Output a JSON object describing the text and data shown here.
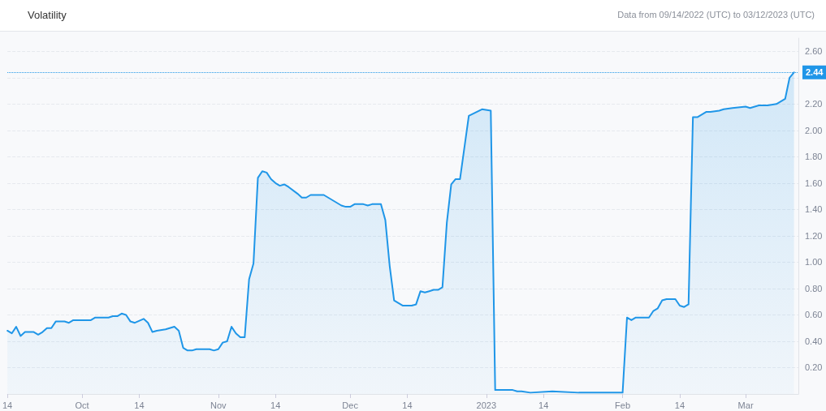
{
  "chart_data": {
    "type": "area",
    "title": "Volatility",
    "annotations": [
      "Data from 09/14/2022 (UTC) to 03/12/2023 (UTC)"
    ],
    "x": [
      "2022-09-14",
      "2022-09-15",
      "2022-09-16",
      "2022-09-17",
      "2022-09-18",
      "2022-09-20",
      "2022-09-21",
      "2022-09-22",
      "2022-09-23",
      "2022-09-24",
      "2022-09-25",
      "2022-09-27",
      "2022-09-28",
      "2022-09-29",
      "2022-09-30",
      "2022-10-03",
      "2022-10-04",
      "2022-10-07",
      "2022-10-08",
      "2022-10-09",
      "2022-10-10",
      "2022-10-11",
      "2022-10-12",
      "2022-10-13",
      "2022-10-15",
      "2022-10-16",
      "2022-10-17",
      "2022-10-18",
      "2022-10-20",
      "2022-10-22",
      "2022-10-23",
      "2022-10-24",
      "2022-10-25",
      "2022-10-26",
      "2022-10-27",
      "2022-10-30",
      "2022-10-31",
      "2022-11-01",
      "2022-11-02",
      "2022-11-03",
      "2022-11-04",
      "2022-11-05",
      "2022-11-06",
      "2022-11-07",
      "2022-11-08",
      "2022-11-09",
      "2022-11-10",
      "2022-11-11",
      "2022-11-12",
      "2022-11-13",
      "2022-11-14",
      "2022-11-15",
      "2022-11-16",
      "2022-11-17",
      "2022-11-19",
      "2022-11-20",
      "2022-11-21",
      "2022-11-22",
      "2022-11-25",
      "2022-11-26",
      "2022-11-27",
      "2022-11-29",
      "2022-11-30",
      "2022-12-01",
      "2022-12-02",
      "2022-12-04",
      "2022-12-05",
      "2022-12-06",
      "2022-12-08",
      "2022-12-09",
      "2022-12-10",
      "2022-12-11",
      "2022-12-13",
      "2022-12-15",
      "2022-12-16",
      "2022-12-17",
      "2022-12-18",
      "2022-12-19",
      "2022-12-20",
      "2022-12-21",
      "2022-12-22",
      "2022-12-23",
      "2022-12-24",
      "2022-12-25",
      "2022-12-26",
      "2022-12-28",
      "2022-12-31",
      "2023-01-02",
      "2023-01-03",
      "2023-01-07",
      "2023-01-08",
      "2023-01-09",
      "2023-01-11",
      "2023-01-16",
      "2023-01-22",
      "2023-02-01",
      "2023-02-02",
      "2023-02-03",
      "2023-02-04",
      "2023-02-07",
      "2023-02-08",
      "2023-02-09",
      "2023-02-10",
      "2023-02-11",
      "2023-02-13",
      "2023-02-14",
      "2023-02-15",
      "2023-02-16",
      "2023-02-17",
      "2023-02-18",
      "2023-02-20",
      "2023-02-21",
      "2023-02-23",
      "2023-02-24",
      "2023-02-26",
      "2023-03-01",
      "2023-03-02",
      "2023-03-04",
      "2023-03-06",
      "2023-03-08",
      "2023-03-09",
      "2023-03-10",
      "2023-03-11",
      "2023-03-12"
    ],
    "series": [
      {
        "color": "#1f96e8",
        "values": [
          0.48,
          0.46,
          0.51,
          0.44,
          0.47,
          0.47,
          0.45,
          0.47,
          0.5,
          0.5,
          0.55,
          0.55,
          0.54,
          0.56,
          0.56,
          0.56,
          0.58,
          0.58,
          0.59,
          0.59,
          0.61,
          0.6,
          0.55,
          0.54,
          0.57,
          0.54,
          0.47,
          0.48,
          0.49,
          0.51,
          0.48,
          0.35,
          0.33,
          0.33,
          0.34,
          0.34,
          0.33,
          0.34,
          0.39,
          0.4,
          0.51,
          0.46,
          0.43,
          0.43,
          0.87,
          0.99,
          1.64,
          1.69,
          1.68,
          1.63,
          1.6,
          1.58,
          1.59,
          1.57,
          1.52,
          1.49,
          1.49,
          1.51,
          1.51,
          1.49,
          1.47,
          1.43,
          1.42,
          1.42,
          1.44,
          1.44,
          1.43,
          1.44,
          1.44,
          1.32,
          0.97,
          0.71,
          0.67,
          0.67,
          0.68,
          0.78,
          0.77,
          0.78,
          0.79,
          0.79,
          0.81,
          1.3,
          1.59,
          1.63,
          1.63,
          2.11,
          2.16,
          2.15,
          0.03,
          0.03,
          0.02,
          0.02,
          0.01,
          0.02,
          0.01,
          0.01,
          0.58,
          0.56,
          0.58,
          0.58,
          0.63,
          0.65,
          0.71,
          0.72,
          0.72,
          0.67,
          0.66,
          0.68,
          2.1,
          2.1,
          2.14,
          2.14,
          2.15,
          2.16,
          2.17,
          2.18,
          2.17,
          2.19,
          2.19,
          2.2,
          2.22,
          2.24,
          2.4,
          2.44
        ]
      }
    ],
    "xlim": [
      "2022-09-14",
      "2023-03-13"
    ],
    "xticks": [
      {
        "value": "2022-09-14",
        "label": "14"
      },
      {
        "value": "2022-10-01",
        "label": "Oct"
      },
      {
        "value": "2022-10-14",
        "label": "14"
      },
      {
        "value": "2022-11-01",
        "label": "Nov"
      },
      {
        "value": "2022-11-14",
        "label": "14"
      },
      {
        "value": "2022-12-01",
        "label": "Dec"
      },
      {
        "value": "2022-12-14",
        "label": "14"
      },
      {
        "value": "2023-01-01",
        "label": "2023"
      },
      {
        "value": "2023-01-14",
        "label": "14"
      },
      {
        "value": "2023-02-01",
        "label": "Feb"
      },
      {
        "value": "2023-02-14",
        "label": "14"
      },
      {
        "value": "2023-03-01",
        "label": "Mar"
      }
    ],
    "ylim": [
      0,
      2.7
    ],
    "yticks": [
      {
        "value": 0.2,
        "label": "0.20"
      },
      {
        "value": 0.4,
        "label": "0.40"
      },
      {
        "value": 0.6,
        "label": "0.60"
      },
      {
        "value": 0.8,
        "label": "0.80"
      },
      {
        "value": 1.0,
        "label": "1.00"
      },
      {
        "value": 1.2,
        "label": "1.20"
      },
      {
        "value": 1.4,
        "label": "1.40"
      },
      {
        "value": 1.6,
        "label": "1.60"
      },
      {
        "value": 1.8,
        "label": "1.80"
      },
      {
        "value": 2.0,
        "label": "2.00"
      },
      {
        "value": 2.2,
        "label": "2.20"
      },
      {
        "value": 2.4,
        "label": null
      },
      {
        "value": 2.6,
        "label": "2.60"
      }
    ],
    "ref_lines": [
      {
        "axis": "y",
        "value": 2.44,
        "label": "2.44",
        "color": "#1f96e8",
        "line_style": "dotted"
      }
    ],
    "grid": "y",
    "marker": "none",
    "line_style": "solid"
  }
}
